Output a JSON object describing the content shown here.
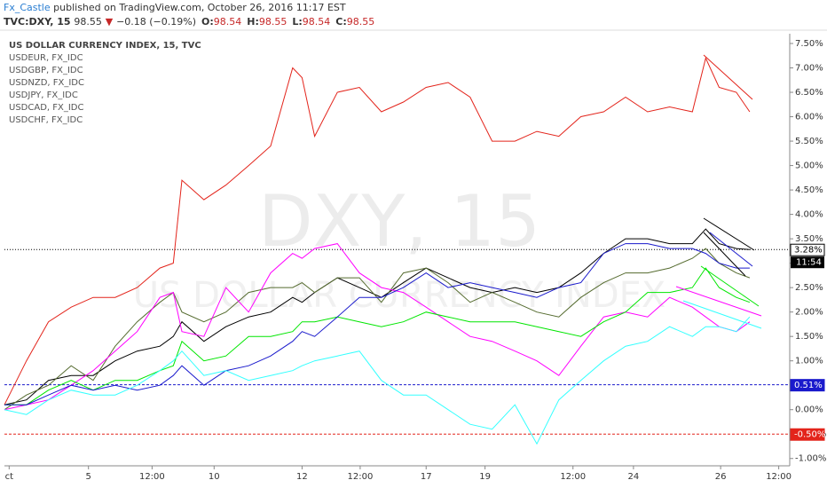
{
  "header": {
    "author": "Fx_Castle",
    "published": "published on TradingView.com, October 26, 2016 11:17 EST",
    "symbol": "TVC:DXY, 15",
    "last": "98.55",
    "arrow": "▼",
    "change": "−0.18 (−0.19%)",
    "ohlc": [
      {
        "key": "O:",
        "value": "98.54"
      },
      {
        "key": "H:",
        "value": "98.55"
      },
      {
        "key": "L:",
        "value": "98.54"
      },
      {
        "key": "C:",
        "value": "98.55"
      }
    ]
  },
  "chart_data": {
    "type": "line",
    "watermark": "DXY, 15",
    "watermark_sub": "US DOLLAR CURRENCY INDEX",
    "grid": false,
    "xlim": [
      0,
      100
    ],
    "xticks": [
      {
        "value": 0.6,
        "label": "ct"
      },
      {
        "value": 10.7,
        "label": "5"
      },
      {
        "value": 18.8,
        "label": "12:00"
      },
      {
        "value": 26.7,
        "label": "10"
      },
      {
        "value": 37.9,
        "label": "12"
      },
      {
        "value": 45.3,
        "label": "12:00"
      },
      {
        "value": 53.7,
        "label": "17"
      },
      {
        "value": 61.2,
        "label": "19"
      },
      {
        "value": 72.4,
        "label": "12:00"
      },
      {
        "value": 80.1,
        "label": "24"
      },
      {
        "value": 91.2,
        "label": "26"
      },
      {
        "value": 98.6,
        "label": "12:00"
      }
    ],
    "ylim": [
      -1.15,
      7.7
    ],
    "yticks": [
      {
        "value": 7.5,
        "label": "7.50%"
      },
      {
        "value": 7,
        "label": "7.00%"
      },
      {
        "value": 6.5,
        "label": "6.50%"
      },
      {
        "value": 6,
        "label": "6.00%"
      },
      {
        "value": 5.5,
        "label": "5.50%"
      },
      {
        "value": 5,
        "label": "5.00%"
      },
      {
        "value": 4.5,
        "label": "4.50%"
      },
      {
        "value": 4,
        "label": "4.00%"
      },
      {
        "value": 3.5,
        "label": "3.50%"
      },
      {
        "value": 3,
        "label": "3.00%"
      },
      {
        "value": 2.5,
        "label": "2.50%"
      },
      {
        "value": 2,
        "label": "2.00%"
      },
      {
        "value": 1.5,
        "label": "1.50%"
      },
      {
        "value": 1,
        "label": "1.00%"
      },
      {
        "value": 0.5,
        "label": "0.50%"
      },
      {
        "value": 0,
        "label": "0.00%"
      },
      {
        "value": -0.5,
        "label": "-0.50%"
      },
      {
        "value": -1,
        "label": "-1.00%"
      }
    ],
    "x": [
      0,
      2.8,
      5.6,
      8.5,
      11.3,
      14.1,
      16.9,
      19.8,
      21.5,
      22.6,
      25.4,
      28.2,
      31.1,
      33.9,
      36.7,
      37.9,
      39.5,
      42.4,
      45.2,
      48.0,
      50.8,
      53.7,
      56.5,
      59.3,
      62.1,
      65.0,
      67.8,
      70.6,
      73.4,
      76.3,
      79.1,
      81.9,
      84.7,
      87.6,
      89.3,
      91.0,
      93.2,
      94.9
    ],
    "series": [
      {
        "name": "US DOLLAR CURRENCY INDEX, 15, TVC",
        "color": "#000000",
        "values": [
          0.1,
          0.2,
          0.6,
          0.7,
          0.7,
          1.0,
          1.2,
          1.3,
          1.5,
          1.8,
          1.4,
          1.7,
          1.9,
          2.0,
          2.3,
          2.2,
          2.4,
          2.7,
          2.5,
          2.3,
          2.6,
          2.9,
          2.7,
          2.5,
          2.4,
          2.5,
          2.4,
          2.5,
          2.8,
          3.2,
          3.5,
          3.5,
          3.4,
          3.4,
          3.7,
          3.4,
          3.3,
          3.28
        ]
      },
      {
        "name": "USDEUR, FX_IDC",
        "color": "#556b2f",
        "values": [
          0.0,
          0.3,
          0.5,
          0.9,
          0.6,
          1.3,
          1.8,
          2.2,
          2.4,
          2.0,
          1.8,
          2.0,
          2.4,
          2.5,
          2.5,
          2.6,
          2.4,
          2.7,
          2.7,
          2.2,
          2.8,
          2.9,
          2.6,
          2.2,
          2.4,
          2.2,
          2.0,
          1.9,
          2.3,
          2.6,
          2.8,
          2.8,
          2.9,
          3.1,
          3.3,
          3.0,
          2.8,
          2.7
        ]
      },
      {
        "name": "USDGBP, FX_IDC",
        "color": "#ff00ff",
        "values": [
          0.0,
          0.1,
          0.2,
          0.5,
          0.8,
          1.2,
          1.6,
          2.3,
          2.4,
          1.6,
          1.5,
          2.5,
          2.0,
          2.8,
          3.2,
          3.1,
          3.3,
          3.4,
          2.8,
          2.5,
          2.4,
          2.1,
          1.8,
          1.5,
          1.4,
          1.2,
          1.0,
          0.7,
          1.3,
          1.9,
          2.0,
          1.9,
          2.3,
          2.1,
          1.9,
          1.7,
          1.6,
          1.8
        ]
      },
      {
        "name": "USDNZD, FX_IDC",
        "color": "#00e600",
        "values": [
          0.1,
          0.1,
          0.4,
          0.6,
          0.4,
          0.6,
          0.6,
          0.8,
          0.9,
          1.4,
          1.0,
          1.1,
          1.5,
          1.5,
          1.6,
          1.8,
          1.8,
          1.9,
          1.8,
          1.7,
          1.8,
          2.0,
          1.9,
          1.8,
          1.8,
          1.8,
          1.7,
          1.6,
          1.5,
          1.8,
          2.0,
          2.4,
          2.4,
          2.5,
          2.9,
          2.5,
          2.3,
          2.2
        ]
      },
      {
        "name": "USDJPY, FX_IDC",
        "color": "#e3241b",
        "values": [
          0.1,
          1.0,
          1.8,
          2.1,
          2.3,
          2.3,
          2.5,
          2.9,
          3.0,
          4.7,
          4.3,
          4.6,
          5.0,
          5.4,
          7.0,
          6.8,
          5.6,
          6.5,
          6.6,
          6.1,
          6.3,
          6.6,
          6.7,
          6.4,
          5.5,
          5.5,
          5.7,
          5.6,
          6.0,
          6.1,
          6.4,
          6.1,
          6.2,
          6.1,
          7.2,
          6.6,
          6.5,
          6.1
        ]
      },
      {
        "name": "USDCAD, FX_IDC",
        "color": "#1a1acc",
        "values": [
          0.1,
          0.1,
          0.3,
          0.5,
          0.4,
          0.5,
          0.4,
          0.5,
          0.7,
          0.9,
          0.5,
          0.8,
          0.9,
          1.1,
          1.4,
          1.6,
          1.5,
          1.9,
          2.3,
          2.3,
          2.5,
          2.8,
          2.5,
          2.6,
          2.5,
          2.4,
          2.3,
          2.5,
          2.6,
          3.2,
          3.4,
          3.4,
          3.3,
          3.3,
          3.2,
          3.0,
          2.9,
          2.9
        ]
      },
      {
        "name": "USDCHF, FX_IDC",
        "color": "#33ffff",
        "values": [
          0.0,
          -0.1,
          0.2,
          0.4,
          0.3,
          0.3,
          0.5,
          0.8,
          1.0,
          1.2,
          0.7,
          0.8,
          0.6,
          0.7,
          0.8,
          0.9,
          1.0,
          1.1,
          1.2,
          0.6,
          0.3,
          0.3,
          0.0,
          -0.3,
          -0.4,
          0.1,
          -0.7,
          0.2,
          0.6,
          1.0,
          1.3,
          1.4,
          1.7,
          1.5,
          1.7,
          1.7,
          1.6,
          1.9
        ]
      }
    ],
    "price_lines": [
      {
        "value": 3.28,
        "label": "3.28%",
        "color": "#000000",
        "style": "dotted"
      },
      {
        "value": 0.51,
        "label": "0.51%",
        "color": "#1a1acc",
        "style": "dashed"
      },
      {
        "value": -0.5,
        "label": "-0.50%",
        "color": "#e3241b",
        "style": "dashed"
      }
    ],
    "countdown": "11:54"
  }
}
